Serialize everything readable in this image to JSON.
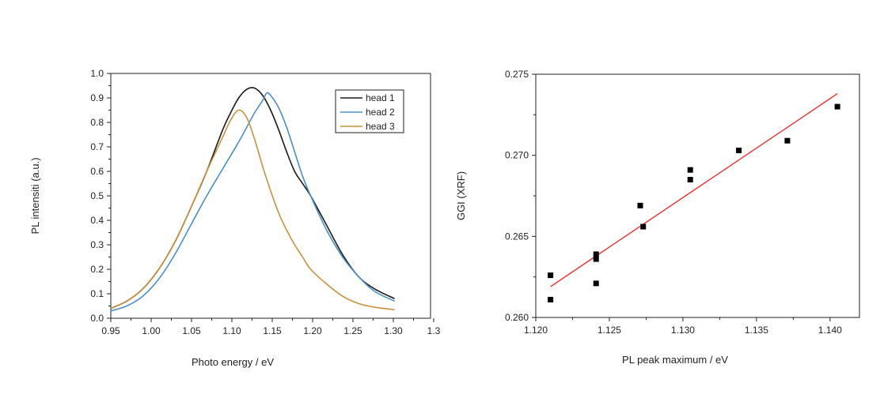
{
  "chart_data": [
    {
      "type": "line",
      "xlabel": "Photo energy / eV",
      "ylabel": "PL intensiti (a.u.)",
      "xlim": [
        0.95,
        1.35
      ],
      "ylim": [
        0.0,
        1.0
      ],
      "x_ticks": [
        "0.95",
        "1.00",
        "1.05",
        "1.10",
        "1.15",
        "1.20",
        "1.25",
        "1.30",
        "1.3"
      ],
      "y_ticks": [
        "0.0",
        "0.1",
        "0.2",
        "0.3",
        "0.4",
        "0.5",
        "0.6",
        "0.7",
        "0.8",
        "0.9",
        "1.0"
      ],
      "grid": false,
      "legend_position": "top-right",
      "series": [
        {
          "name": "head 1",
          "color": "#1a1a1a",
          "x": [
            0.95,
            0.97,
            0.99,
            1.01,
            1.03,
            1.05,
            1.07,
            1.09,
            1.1,
            1.11,
            1.12,
            1.13,
            1.14,
            1.15,
            1.16,
            1.17,
            1.18,
            1.19,
            1.2,
            1.22,
            1.24,
            1.26,
            1.28,
            1.305
          ],
          "y": [
            0.04,
            0.07,
            0.12,
            0.2,
            0.31,
            0.45,
            0.6,
            0.77,
            0.84,
            0.9,
            0.935,
            0.94,
            0.91,
            0.85,
            0.77,
            0.68,
            0.6,
            0.55,
            0.5,
            0.38,
            0.26,
            0.17,
            0.12,
            0.08
          ]
        },
        {
          "name": "head 2",
          "color": "#4a90c8",
          "x": [
            0.95,
            0.97,
            0.99,
            1.01,
            1.03,
            1.05,
            1.07,
            1.09,
            1.11,
            1.12,
            1.13,
            1.14,
            1.145,
            1.15,
            1.16,
            1.17,
            1.18,
            1.19,
            1.2,
            1.22,
            1.24,
            1.26,
            1.28,
            1.305
          ],
          "y": [
            0.03,
            0.05,
            0.09,
            0.16,
            0.26,
            0.38,
            0.5,
            0.61,
            0.72,
            0.78,
            0.84,
            0.89,
            0.92,
            0.91,
            0.86,
            0.78,
            0.68,
            0.58,
            0.5,
            0.36,
            0.25,
            0.17,
            0.11,
            0.07
          ]
        },
        {
          "name": "head 3",
          "color": "#c8913e",
          "x": [
            0.95,
            0.97,
            0.99,
            1.01,
            1.03,
            1.05,
            1.07,
            1.09,
            1.1,
            1.11,
            1.12,
            1.13,
            1.14,
            1.15,
            1.16,
            1.17,
            1.18,
            1.19,
            1.2,
            1.22,
            1.24,
            1.26,
            1.28,
            1.305
          ],
          "y": [
            0.04,
            0.07,
            0.12,
            0.2,
            0.31,
            0.45,
            0.6,
            0.74,
            0.81,
            0.85,
            0.82,
            0.73,
            0.62,
            0.52,
            0.43,
            0.36,
            0.3,
            0.25,
            0.2,
            0.14,
            0.09,
            0.06,
            0.045,
            0.035
          ]
        }
      ]
    },
    {
      "type": "scatter",
      "xlabel": "PL peak maximum / eV",
      "ylabel": "GGI (XRF)",
      "xlim": [
        1.12,
        1.142
      ],
      "ylim": [
        0.26,
        0.275
      ],
      "x_ticks": [
        "1.120",
        "1.125",
        "1.130",
        "1.135",
        "1.140"
      ],
      "y_ticks": [
        "0.260",
        "0.265",
        "0.270",
        "0.275"
      ],
      "grid": false,
      "series": [
        {
          "marker_color": "#000000",
          "x": [
            1.121,
            1.121,
            1.1241,
            1.1241,
            1.1241,
            1.1271,
            1.1273,
            1.1305,
            1.1305,
            1.1338,
            1.1371,
            1.1405
          ],
          "y": [
            0.2626,
            0.2611,
            0.2639,
            0.2636,
            0.2621,
            0.2669,
            0.2656,
            0.2691,
            0.2685,
            0.2703,
            0.2709,
            0.273
          ]
        }
      ],
      "fit_line": {
        "color": "#e23b3b",
        "x": [
          1.121,
          1.1405
        ],
        "y": [
          0.2619,
          0.2738
        ]
      }
    }
  ]
}
